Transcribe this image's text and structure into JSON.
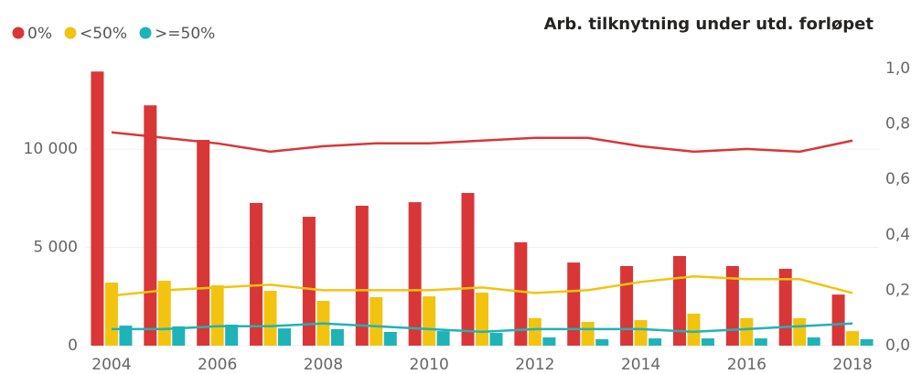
{
  "chart_data": {
    "type": "bar_line_combo",
    "title": "Arb. tilknytning under utd. forløpet",
    "categories": [
      "2004",
      null,
      "2006",
      null,
      "2008",
      null,
      "2010",
      null,
      "2012",
      null,
      "2014",
      null,
      "2016",
      null,
      "2018"
    ],
    "series": [
      {
        "name": "0%",
        "color": "#d93637",
        "values": [
          13950,
          12230,
          10470,
          7260,
          6560,
          7120,
          7300,
          7770,
          5260,
          4230,
          4050,
          4560,
          4050,
          3910,
          2600
        ],
        "y2_values": [
          0.77,
          0.75,
          0.73,
          0.7,
          0.72,
          0.73,
          0.73,
          0.74,
          0.75,
          0.75,
          0.72,
          0.7,
          0.71,
          0.7,
          0.74
        ]
      },
      {
        "name": "<50%",
        "color": "#f2c40f",
        "values": [
          3210,
          3300,
          3070,
          2790,
          2280,
          2470,
          2510,
          2700,
          1400,
          1210,
          1300,
          1630,
          1400,
          1400,
          740
        ],
        "y2_values": [
          0.18,
          0.2,
          0.21,
          0.22,
          0.2,
          0.2,
          0.2,
          0.21,
          0.19,
          0.2,
          0.23,
          0.25,
          0.24,
          0.24,
          0.19
        ]
      },
      {
        "name": ">=50%",
        "color": "#1fb3b8",
        "values": [
          1020,
          980,
          1070,
          880,
          840,
          700,
          740,
          650,
          420,
          330,
          370,
          370,
          370,
          420,
          330
        ],
        "y2_values": [
          0.06,
          0.06,
          0.07,
          0.07,
          0.08,
          0.07,
          0.06,
          0.05,
          0.06,
          0.06,
          0.06,
          0.05,
          0.06,
          0.07,
          0.08
        ]
      }
    ],
    "ylim": [
      0,
      14100
    ],
    "yticks": [
      0,
      {
        "value": 5000,
        "label": "5 000"
      },
      {
        "value": 10000,
        "label": "10 000"
      }
    ],
    "y2lim": [
      0,
      1.0
    ],
    "y2ticks": [
      {
        "value": 0,
        "label": "0,0"
      },
      {
        "value": 0.2,
        "label": "0,2"
      },
      {
        "value": 0.4,
        "label": "0,4"
      },
      {
        "value": 0.6,
        "label": "0,6"
      },
      {
        "value": 0.8,
        "label": "0,8"
      },
      {
        "value": 1.0,
        "label": "1,0"
      }
    ],
    "grid": true,
    "legend": "top-left"
  }
}
